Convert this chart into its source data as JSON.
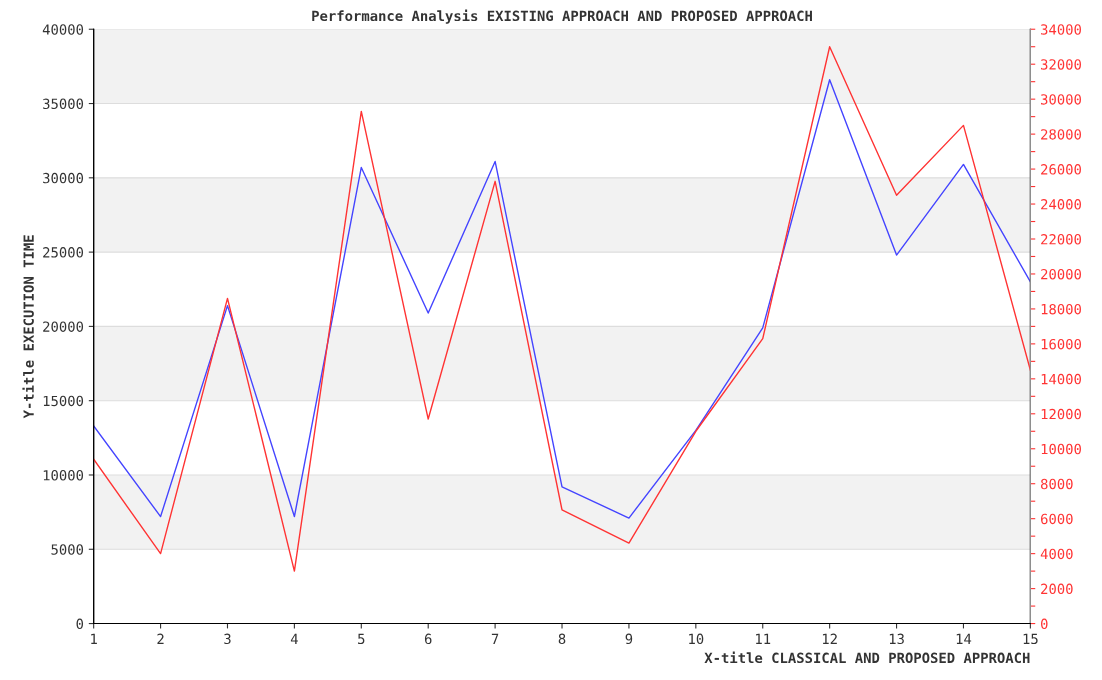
{
  "chart_data": {
    "type": "line",
    "title": "Performance Analysis EXISTING APPROACH AND PROPOSED APPROACH",
    "xlabel": "X-title CLASSICAL AND PROPOSED APPROACH",
    "ylabel": "Y-title EXECUTION TIME",
    "x": [
      1,
      2,
      3,
      4,
      5,
      6,
      7,
      8,
      9,
      10,
      11,
      12,
      13,
      14,
      15
    ],
    "series": [
      {
        "color": "#4444ff",
        "values": [
          13300,
          7200,
          21400,
          7200,
          30700,
          20900,
          31100,
          9200,
          7100,
          13000,
          19900,
          36600,
          24800,
          30900,
          23000
        ]
      },
      {
        "color": "#ff3333",
        "axis": "y2",
        "values": [
          9400,
          4000,
          18600,
          3000,
          29300,
          11700,
          25300,
          6500,
          4600,
          11000,
          16300,
          33000,
          24500,
          28500,
          14500
        ]
      }
    ],
    "xlim": [
      1,
      15
    ],
    "xticks": [
      1,
      2,
      3,
      4,
      5,
      6,
      7,
      8,
      9,
      10,
      11,
      12,
      13,
      14,
      15
    ],
    "ylim": [
      0,
      40000
    ],
    "yticks": [
      0,
      5000,
      10000,
      15000,
      20000,
      25000,
      30000,
      35000,
      40000
    ],
    "y2lim": [
      0,
      34000
    ],
    "y2ticks": [
      0,
      {
        "value": 1000,
        "label": null
      },
      2000,
      {
        "value": 3000,
        "label": null
      },
      4000,
      {
        "value": 5000,
        "label": null
      },
      6000,
      {
        "value": 7000,
        "label": null
      },
      8000,
      {
        "value": 9000,
        "label": null
      },
      10000,
      {
        "value": 11000,
        "label": null
      },
      12000,
      {
        "value": 13000,
        "label": null
      },
      14000,
      {
        "value": 15000,
        "label": null
      },
      16000,
      {
        "value": 17000,
        "label": null
      },
      18000,
      {
        "value": 19000,
        "label": null
      },
      20000,
      {
        "value": 21000,
        "label": null
      },
      22000,
      {
        "value": 23000,
        "label": null
      },
      24000,
      {
        "value": 25000,
        "label": null
      },
      26000,
      {
        "value": 27000,
        "label": null
      },
      28000,
      {
        "value": 29000,
        "label": null
      },
      30000,
      {
        "value": 31000,
        "label": null
      },
      32000,
      {
        "value": 33000,
        "label": null
      },
      34000
    ],
    "grid": "y",
    "legend": false,
    "marker": "none",
    "line_style": "solid"
  }
}
